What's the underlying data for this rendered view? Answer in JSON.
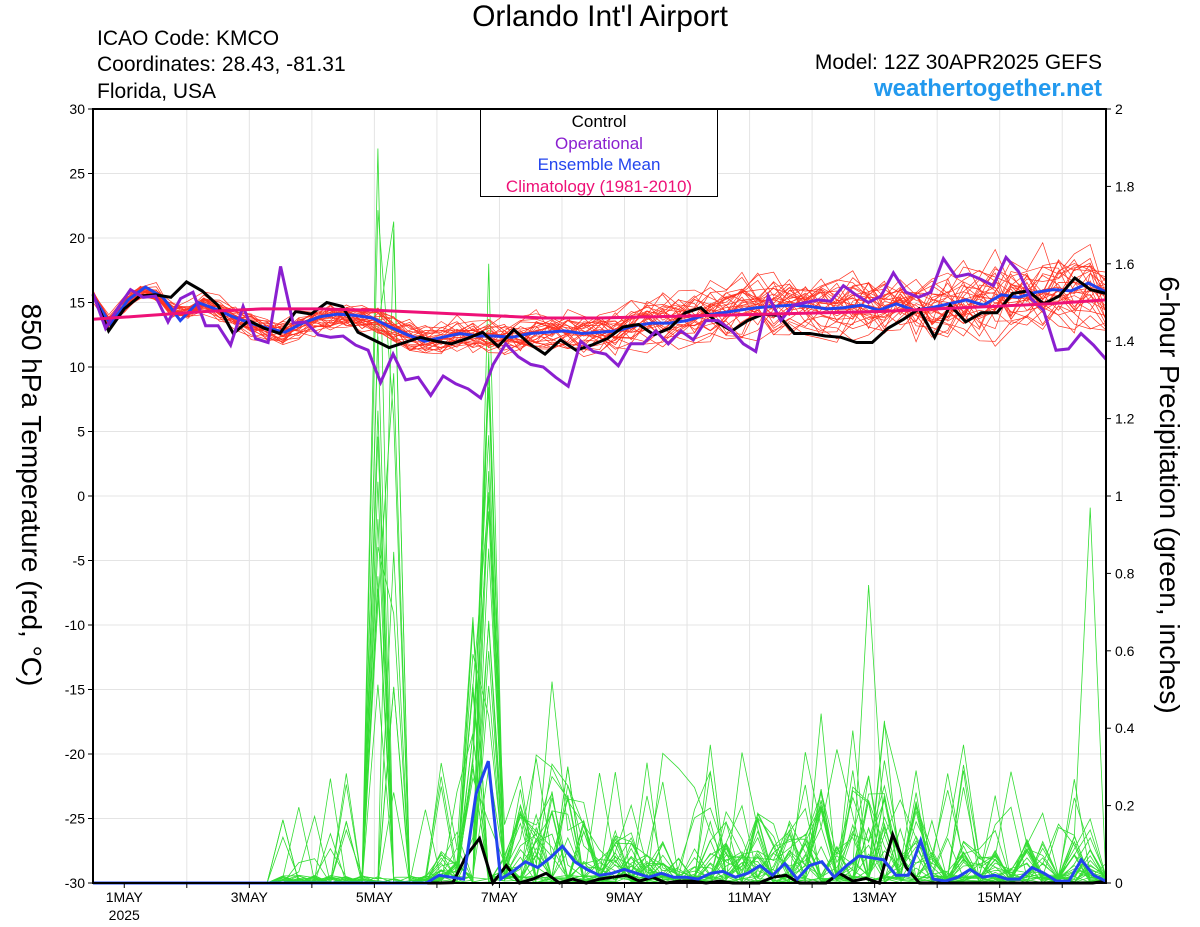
{
  "header": {
    "title": "Orlando Int'l Airport",
    "icao": "ICAO Code: KMCO",
    "coordinates": "Coordinates: 28.43, -81.31",
    "region": "Florida, USA",
    "model": "Model: 12Z 30APR2025 GEFS",
    "site": "weathertogether.net"
  },
  "legend": {
    "control": "Control",
    "operational": "Operational",
    "ensemble_mean": "Ensemble Mean",
    "climatology": "Climatology (1981-2010)"
  },
  "colors": {
    "control": "#000000",
    "operational": "#8a1fd0",
    "ensemble_mean": "#2244ee",
    "climatology": "#ee1177",
    "members_temp": "#ff3322",
    "members_precip": "#33dd33"
  },
  "chart_data": {
    "type": "line",
    "xlabel": "",
    "ylabel": "850 hPa Temperature (red, °C)",
    "ylabel_right": "6-hour Precipitation (green, inches)",
    "ylim": [
      -30,
      30
    ],
    "ylim_right": [
      0,
      2
    ],
    "yticks": [
      "30",
      "25",
      "20",
      "15",
      "10",
      "5",
      "0",
      "-5",
      "-10",
      "-15",
      "-20",
      "-25",
      "-30"
    ],
    "yticks_right": [
      "2",
      "1.8",
      "1.6",
      "1.4",
      "1.2",
      "1",
      "0.8",
      "0.6",
      "0.4",
      "0.2",
      "0"
    ],
    "xticks": [
      "1MAY",
      "3MAY",
      "5MAY",
      "7MAY",
      "9MAY",
      "11MAY",
      "13MAY",
      "15MAY"
    ],
    "xtick_sub": "2025",
    "day_range": [
      0.5,
      16.7
    ],
    "temperature": {
      "control": [
        15.6,
        12.8,
        14.5,
        15.5,
        15.6,
        15.4,
        16.6,
        15.9,
        14.8,
        12.6,
        13.6,
        13.0,
        12.6,
        14.3,
        14.1,
        15.0,
        14.7,
        12.7,
        12.1,
        11.5,
        11.9,
        12.3,
        12.0,
        11.8,
        12.2,
        12.7,
        11.6,
        12.9,
        11.8,
        11.0,
        12.1,
        11.3,
        11.7,
        12.2,
        13.1,
        13.3,
        12.5,
        13.0,
        14.2,
        14.6,
        13.5,
        12.8,
        13.6,
        14.1,
        14.0,
        12.6,
        12.6,
        12.4,
        12.3,
        11.9,
        11.9,
        13.0,
        13.7,
        14.5,
        12.3,
        14.8,
        13.5,
        14.2,
        14.2,
        15.7,
        15.9,
        14.9,
        15.5,
        16.9,
        16.0,
        15.7
      ],
      "operational": [
        15.7,
        13.0,
        14.6,
        16.0,
        15.4,
        15.5,
        13.5,
        15.3,
        15.8,
        13.2,
        13.2,
        11.7,
        14.7,
        12.2,
        11.9,
        17.8,
        13.4,
        13.5,
        12.5,
        12.3,
        12.4,
        11.7,
        11.3,
        8.8,
        11.0,
        9.0,
        9.2,
        7.8,
        9.3,
        8.7,
        8.3,
        7.6,
        10.2,
        11.8,
        10.8,
        10.2,
        10.0,
        9.2,
        8.5,
        12.0,
        11.2,
        11.0,
        10.1,
        11.8,
        11.8,
        12.8,
        11.8,
        12.8,
        12.1,
        13.6,
        13.6,
        12.9,
        11.8,
        11.2,
        15.5,
        13.6,
        14.8,
        15.0,
        15.2,
        15.1,
        16.3,
        15.6,
        15.0,
        15.5,
        17.3,
        15.8,
        15.4,
        15.8,
        18.4,
        17.0,
        17.2,
        16.8,
        16.3,
        18.5,
        17.4,
        15.3,
        14.4,
        11.3,
        11.4,
        12.6,
        11.7,
        10.6
      ],
      "ensemble_mean": [
        15.5,
        13.3,
        15.2,
        16.2,
        15.4,
        13.6,
        15.0,
        14.5,
        13.9,
        13.4,
        13.0,
        12.7,
        13.4,
        13.9,
        14.1,
        14.0,
        13.8,
        13.1,
        12.5,
        12.0,
        12.3,
        12.6,
        12.4,
        12.4,
        12.3,
        12.6,
        12.7,
        12.8,
        12.6,
        12.7,
        12.8,
        13.2,
        13.4,
        13.4,
        13.6,
        14.0,
        14.2,
        14.4,
        14.6,
        14.7,
        14.8,
        14.7,
        14.5,
        14.6,
        14.8,
        14.4,
        14.9,
        14.4,
        14.6,
        14.9,
        15.2,
        14.8,
        15.6,
        15.4,
        15.8,
        16.0,
        15.9,
        16.5,
        15.8
      ],
      "climatology": [
        13.7,
        14.0,
        14.3,
        14.5,
        14.5,
        14.4,
        14.2,
        14.0,
        13.8,
        13.8,
        13.9,
        14.0,
        14.1,
        14.2,
        14.3,
        14.5,
        14.7,
        14.9,
        15.2
      ],
      "member_count": 30
    },
    "precipitation": {
      "control": [
        0,
        0,
        0,
        0,
        0,
        0,
        0,
        0,
        0,
        0,
        0,
        0,
        0,
        0,
        0,
        0,
        0,
        0,
        0,
        0,
        0,
        0,
        0,
        0,
        0,
        0,
        0,
        0.001,
        0.07,
        0.115,
        0,
        0.045,
        0,
        0.01,
        0.025,
        0,
        0.01,
        0,
        0.01,
        0.015,
        0.02,
        0.005,
        0.015,
        0,
        0.005,
        0.005,
        0,
        0.005,
        0,
        0,
        0,
        0.015,
        0.02,
        0,
        0,
        0,
        0.025,
        0.005,
        0.012,
        0,
        0.125,
        0.04,
        0,
        0,
        0,
        0,
        0,
        0,
        0,
        0,
        0,
        0,
        0,
        0,
        0,
        0,
        0.005
      ],
      "ensemble_mean": [
        0,
        0,
        0,
        0,
        0,
        0,
        0,
        0,
        0,
        0,
        0,
        0,
        0,
        0,
        0,
        0,
        0,
        0,
        0,
        0,
        0,
        0,
        0,
        0,
        0,
        0,
        0,
        0,
        0.02,
        0.015,
        0.01,
        0.23,
        0.315,
        0.01,
        0.03,
        0.055,
        0.04,
        0.065,
        0.095,
        0.055,
        0.035,
        0.02,
        0.025,
        0.035,
        0.025,
        0.015,
        0.025,
        0.015,
        0.015,
        0.01,
        0.025,
        0.03,
        0.015,
        0.025,
        0.045,
        0.02,
        0.05,
        0.01,
        0.045,
        0.055,
        0.015,
        0.045,
        0.07,
        0.065,
        0.06,
        0.02,
        0.02,
        0.11,
        0.01,
        0.005,
        0.015,
        0.035,
        0.015,
        0.02,
        0.01,
        0.01,
        0.04,
        0.025,
        0.005,
        0.005,
        0.06,
        0.02,
        0.005
      ],
      "member_count": 30
    }
  }
}
